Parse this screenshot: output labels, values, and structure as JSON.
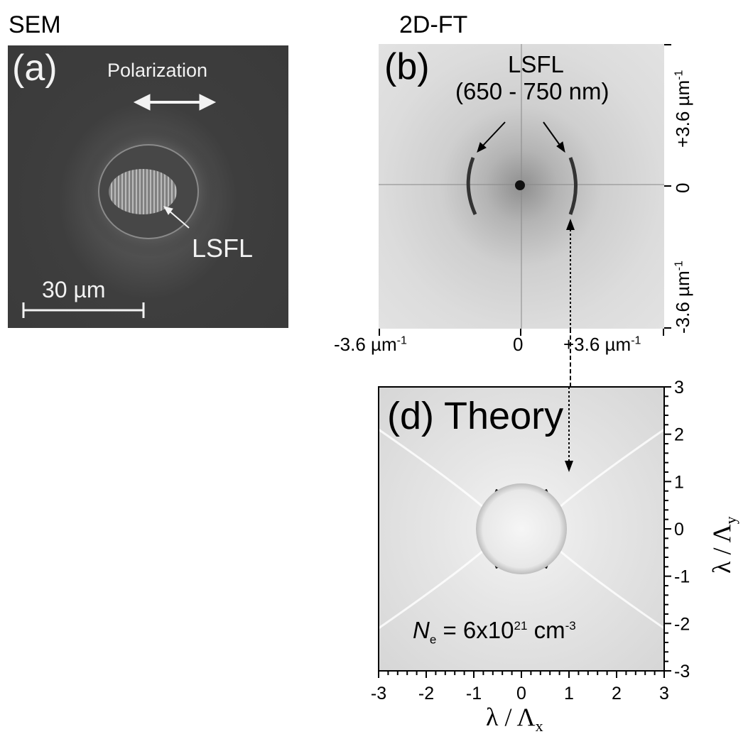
{
  "headers": {
    "sem": "SEM",
    "ft": "2D-FT"
  },
  "panel_a": {
    "label": "(a)",
    "polarization": "Polarization",
    "lsfl": "LSFL",
    "scalebar": "30 µm"
  },
  "panel_b": {
    "label": "(b)",
    "lsfl": "LSFL",
    "lsfl_range": "(650 - 750 nm)",
    "x_ticks": [
      "-3.6 µm",
      "0",
      "+3.6 µm"
    ],
    "y_ticks": [
      "+3.6 µm",
      "0",
      "-3.6 µm"
    ],
    "exponent": "-1"
  },
  "panel_d": {
    "label": "(d) Theory",
    "ne_symbol": "N",
    "ne_sub": "e",
    "ne_value": " = 6x10",
    "ne_exp": "21",
    "ne_unit": " cm",
    "ne_unit_exp": "-3",
    "xlabel": "λ / Λ",
    "xlabel_sub": "x",
    "ylabel": "λ / Λ",
    "ylabel_sub": "y",
    "x_ticks": [
      "-3",
      "-2",
      "-1",
      "0",
      "1",
      "2",
      "3"
    ],
    "y_ticks": [
      "3",
      "2",
      "1",
      "0",
      "-1",
      "-2",
      "-3"
    ]
  },
  "colors": {
    "sem_bg": "#3a3a3a",
    "ft_bg": "#dcdcdc",
    "theory_bg": "#e6e6e6",
    "annotation": "#000000"
  }
}
